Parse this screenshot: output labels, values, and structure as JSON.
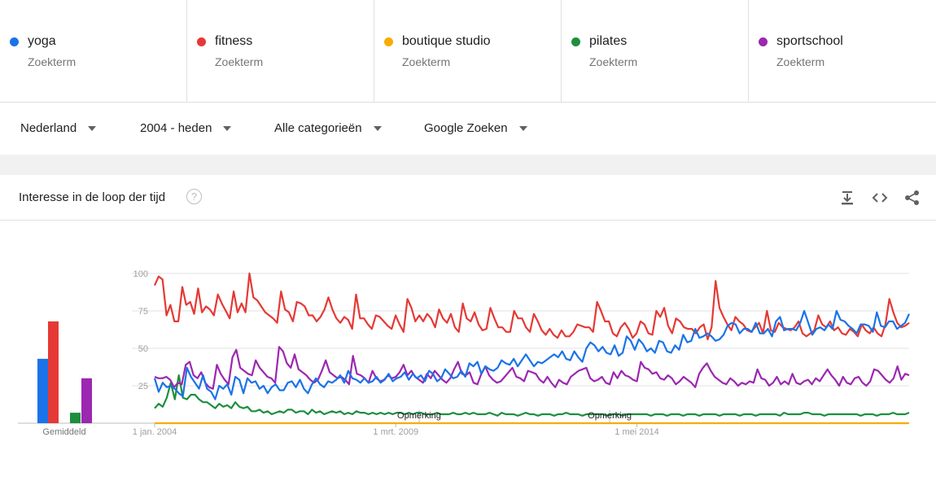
{
  "terms": [
    {
      "name": "yoga",
      "type": "Zoekterm",
      "color": "#1a73e8"
    },
    {
      "name": "fitness",
      "type": "Zoekterm",
      "color": "#e53935"
    },
    {
      "name": "boutique studio",
      "type": "Zoekterm",
      "color": "#f9ab00"
    },
    {
      "name": "pilates",
      "type": "Zoekterm",
      "color": "#1e8e3e"
    },
    {
      "name": "sportschool",
      "type": "Zoekterm",
      "color": "#9c27b0"
    }
  ],
  "filters": {
    "region": "Nederland",
    "period": "2004 - heden",
    "category": "Alle categorieën",
    "source": "Google Zoeken"
  },
  "card": {
    "title": "Interesse in de loop der tijd",
    "help_symbol": "?"
  },
  "icons": {
    "download": "download-icon",
    "embed": "embed-code-icon",
    "share": "share-icon"
  },
  "chart_data": {
    "type": "line",
    "x_labels": [
      "1 jan. 2004",
      "1 mrt. 2009",
      "1 mei 2014"
    ],
    "y_ticks": [
      25,
      50,
      75,
      100
    ],
    "ylim": [
      0,
      100
    ],
    "average_label": "Gemiddeld",
    "annotations": [
      {
        "label": "Opmerking",
        "month_index": 68
      },
      {
        "label": "Opmerking",
        "month_index": 117
      }
    ],
    "series": [
      {
        "name": "yoga",
        "color": "#1a73e8",
        "average": 43,
        "values": [
          30,
          21,
          27,
          24,
          25,
          23,
          20,
          18,
          37,
          31,
          27,
          23,
          32,
          23,
          21,
          16,
          25,
          23,
          26,
          19,
          31,
          29,
          20,
          30,
          27,
          28,
          23,
          25,
          20,
          24,
          26,
          22,
          22,
          27,
          28,
          24,
          29,
          23,
          20,
          26,
          30,
          26,
          24,
          28,
          27,
          29,
          32,
          27,
          35,
          30,
          29,
          27,
          30,
          27,
          28,
          31,
          27,
          29,
          33,
          28,
          30,
          31,
          34,
          29,
          33,
          30,
          32,
          28,
          35,
          33,
          28,
          30,
          36,
          33,
          30,
          31,
          35,
          31,
          40,
          38,
          41,
          33,
          38,
          36,
          35,
          37,
          42,
          40,
          39,
          43,
          38,
          42,
          46,
          42,
          38,
          41,
          40,
          42,
          44,
          46,
          44,
          48,
          43,
          42,
          48,
          44,
          41,
          50,
          54,
          52,
          48,
          51,
          47,
          46,
          52,
          45,
          47,
          58,
          55,
          49,
          56,
          53,
          48,
          50,
          47,
          55,
          54,
          48,
          47,
          52,
          49,
          59,
          54,
          55,
          63,
          57,
          58,
          60,
          58,
          55,
          56,
          59,
          65,
          67,
          66,
          60,
          63,
          63,
          61,
          67,
          60,
          60,
          63,
          58,
          68,
          71,
          62,
          63,
          63,
          62,
          67,
          75,
          67,
          59,
          63,
          64,
          62,
          66,
          63,
          75,
          69,
          68,
          65,
          63,
          60,
          66,
          66,
          65,
          61,
          74,
          65,
          64,
          68,
          68,
          63,
          65,
          67,
          73
        ]
      },
      {
        "name": "fitness",
        "color": "#e53935",
        "average": 68,
        "values": [
          92,
          98,
          96,
          72,
          79,
          68,
          68,
          91,
          79,
          81,
          73,
          90,
          74,
          78,
          76,
          72,
          86,
          80,
          75,
          70,
          88,
          74,
          80,
          74,
          100,
          84,
          82,
          78,
          74,
          72,
          70,
          67,
          88,
          76,
          74,
          68,
          81,
          80,
          78,
          72,
          72,
          68,
          71,
          76,
          84,
          76,
          70,
          67,
          71,
          69,
          63,
          86,
          70,
          70,
          66,
          63,
          72,
          71,
          68,
          65,
          63,
          72,
          66,
          61,
          83,
          77,
          68,
          72,
          68,
          73,
          70,
          64,
          76,
          70,
          67,
          73,
          64,
          61,
          80,
          70,
          68,
          74,
          66,
          62,
          63,
          77,
          70,
          64,
          64,
          61,
          61,
          75,
          70,
          70,
          64,
          61,
          73,
          68,
          62,
          59,
          63,
          59,
          57,
          62,
          58,
          58,
          61,
          66,
          65,
          64,
          64,
          61,
          81,
          75,
          68,
          68,
          60,
          58,
          64,
          67,
          63,
          57,
          60,
          68,
          66,
          60,
          59,
          75,
          71,
          77,
          65,
          60,
          70,
          68,
          64,
          63,
          63,
          60,
          64,
          66,
          56,
          64,
          95,
          77,
          71,
          66,
          62,
          71,
          68,
          66,
          62,
          61,
          64,
          67,
          60,
          75,
          62,
          61,
          67,
          64,
          63,
          62,
          64,
          68,
          60,
          58,
          60,
          62,
          72,
          66,
          64,
          68,
          62,
          64,
          60,
          59,
          63,
          61,
          58,
          66,
          62,
          60,
          64,
          60,
          58,
          66,
          83,
          74,
          67,
          64,
          65,
          67
        ]
      },
      {
        "name": "boutique studio",
        "color": "#f9ab00",
        "average": 0,
        "values": [
          0,
          0
        ]
      },
      {
        "name": "pilates",
        "color": "#1e8e3e",
        "average": 7,
        "values": [
          10,
          13,
          11,
          17,
          27,
          16,
          32,
          17,
          16,
          19,
          19,
          16,
          14,
          14,
          12,
          10,
          13,
          11,
          12,
          10,
          14,
          11,
          10,
          11,
          8,
          8,
          9,
          7,
          8,
          6,
          7,
          8,
          7,
          9,
          9,
          7,
          8,
          8,
          6,
          9,
          7,
          8,
          6,
          7,
          8,
          7,
          8,
          6,
          7,
          6,
          8,
          7,
          7,
          6,
          7,
          6,
          7,
          6,
          7,
          6,
          7,
          7,
          6,
          7,
          6,
          7,
          7,
          6,
          6,
          6,
          7,
          6,
          6,
          6,
          7,
          6,
          6,
          7,
          6,
          7,
          6,
          6,
          6,
          7,
          6,
          5,
          7,
          6,
          6,
          6,
          5,
          6,
          7,
          6,
          6,
          5,
          6,
          6,
          6,
          5,
          6,
          6,
          7,
          6,
          6,
          6,
          5,
          6,
          6,
          6,
          6,
          6,
          5,
          6,
          6,
          6,
          5,
          6,
          6,
          6,
          6,
          6,
          6,
          5,
          6,
          6,
          6,
          5,
          6,
          6,
          6,
          5,
          6,
          6,
          6,
          5,
          6,
          6,
          6,
          6,
          5,
          6,
          6,
          6,
          6,
          5,
          6,
          6,
          6,
          5,
          6,
          6,
          6,
          6,
          6,
          5,
          7,
          6,
          6,
          6,
          6,
          7,
          7,
          6,
          6,
          6,
          5,
          6,
          6,
          6,
          6,
          6,
          6,
          6,
          6,
          5,
          6,
          6,
          6,
          5,
          6,
          6,
          6,
          7,
          6,
          6,
          6,
          7
        ]
      },
      {
        "name": "sportschool",
        "color": "#9c27b0",
        "average": 30,
        "values": [
          31,
          30,
          30,
          31,
          29,
          24,
          27,
          26,
          39,
          41,
          32,
          30,
          34,
          27,
          24,
          23,
          39,
          33,
          29,
          26,
          44,
          49,
          37,
          35,
          33,
          32,
          42,
          37,
          34,
          31,
          30,
          27,
          51,
          48,
          40,
          37,
          46,
          36,
          34,
          32,
          29,
          27,
          29,
          35,
          42,
          34,
          32,
          30,
          31,
          29,
          26,
          45,
          33,
          32,
          30,
          27,
          35,
          30,
          28,
          29,
          32,
          30,
          31,
          34,
          39,
          32,
          35,
          31,
          29,
          27,
          33,
          30,
          35,
          32,
          29,
          27,
          30,
          36,
          41,
          33,
          32,
          34,
          27,
          26,
          33,
          38,
          32,
          29,
          27,
          28,
          31,
          34,
          37,
          31,
          30,
          28,
          35,
          34,
          33,
          29,
          27,
          31,
          27,
          24,
          29,
          27,
          26,
          31,
          33,
          35,
          36,
          37,
          30,
          28,
          29,
          31,
          27,
          26,
          34,
          30,
          35,
          32,
          31,
          29,
          28,
          41,
          37,
          36,
          33,
          34,
          30,
          29,
          32,
          30,
          26,
          28,
          31,
          29,
          27,
          24,
          33,
          37,
          40,
          35,
          31,
          29,
          27,
          26,
          30,
          28,
          25,
          27,
          26,
          28,
          27,
          36,
          30,
          29,
          25,
          27,
          31,
          26,
          28,
          26,
          33,
          27,
          26,
          28,
          29,
          26,
          30,
          28,
          32,
          36,
          32,
          29,
          25,
          31,
          27,
          26,
          30,
          31,
          27,
          25,
          28,
          36,
          35,
          32,
          29,
          27,
          30,
          38,
          29,
          33,
          32
        ]
      }
    ]
  }
}
